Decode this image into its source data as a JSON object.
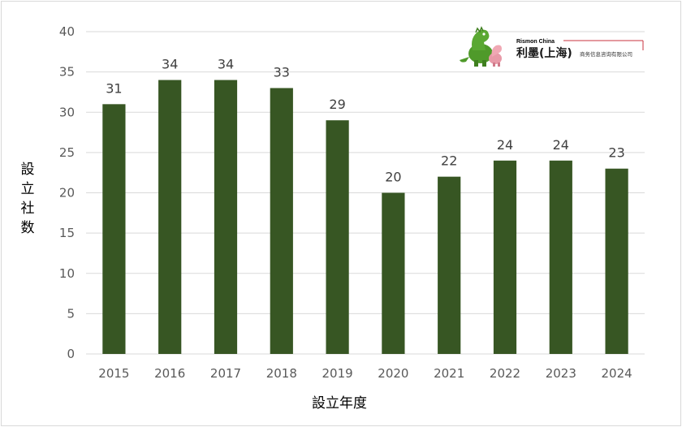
{
  "chart_data": {
    "type": "bar",
    "categories": [
      "2015",
      "2016",
      "2017",
      "2018",
      "2019",
      "2020",
      "2021",
      "2022",
      "2023",
      "2024"
    ],
    "values": [
      31,
      34,
      34,
      33,
      29,
      20,
      22,
      24,
      24,
      23
    ],
    "ylim": [
      0,
      40
    ],
    "yticks": [
      0,
      5,
      10,
      15,
      20,
      25,
      30,
      35,
      40
    ],
    "xlabel": "設立年度",
    "ylabel_chars": [
      "設",
      "立",
      "社",
      "数"
    ],
    "grid": true,
    "bar_color": "#375623",
    "grid_color": "#d9d9d9",
    "data_labels": true
  },
  "logo": {
    "en": "Rismon China",
    "cn": "利墨(上海)",
    "sub": "商务信息咨询有限公司"
  }
}
